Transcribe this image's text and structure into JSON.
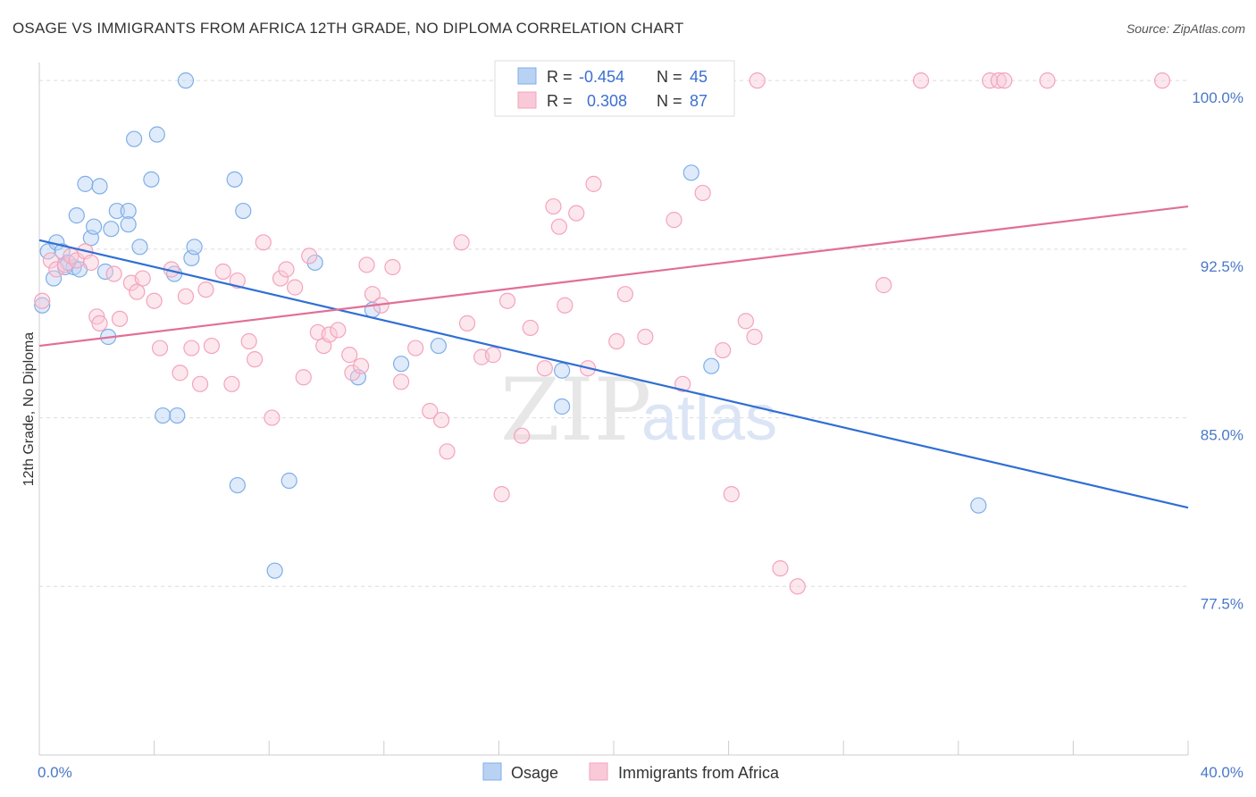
{
  "title": "OSAGE VS IMMIGRANTS FROM AFRICA 12TH GRADE, NO DIPLOMA CORRELATION CHART",
  "source": "Source: ZipAtlas.com",
  "watermark": {
    "zip": "ZIP",
    "atlas": "atlas"
  },
  "chart_data": {
    "type": "scatter",
    "ylabel": "12th Grade, No Diploma",
    "xlabel": "",
    "xlim": [
      0,
      40
    ],
    "ylim": [
      70,
      100.8
    ],
    "x_tick_labels": [
      "0.0%",
      "40.0%"
    ],
    "y_ticks": [
      77.5,
      85.0,
      92.5,
      100.0
    ],
    "y_tick_labels": [
      "77.5%",
      "85.0%",
      "92.5%",
      "100.0%"
    ],
    "legend": {
      "rows": [
        {
          "r_label": "R =",
          "r_value": "-0.454",
          "n_label": "N =",
          "n_value": "45"
        },
        {
          "r_label": "R =",
          "r_value": "0.308",
          "n_label": "N =",
          "n_value": "87"
        }
      ]
    },
    "series": [
      {
        "name": "Osage",
        "color": "#7eaee8",
        "line_color": "#2f6fd4",
        "trend": [
          [
            0,
            92.9
          ],
          [
            40,
            81.0
          ]
        ],
        "points": [
          [
            0.1,
            90.0
          ],
          [
            0.3,
            92.4
          ],
          [
            0.6,
            92.8
          ],
          [
            0.8,
            92.4
          ],
          [
            0.5,
            91.2
          ],
          [
            0.9,
            91.7
          ],
          [
            1.2,
            91.7
          ],
          [
            1.0,
            91.9
          ],
          [
            1.4,
            91.6
          ],
          [
            1.3,
            94.0
          ],
          [
            1.6,
            95.4
          ],
          [
            1.8,
            93.0
          ],
          [
            1.9,
            93.5
          ],
          [
            2.1,
            95.3
          ],
          [
            2.3,
            91.5
          ],
          [
            2.5,
            93.4
          ],
          [
            2.4,
            88.6
          ],
          [
            2.7,
            94.2
          ],
          [
            3.1,
            94.2
          ],
          [
            3.1,
            93.6
          ],
          [
            3.3,
            97.4
          ],
          [
            3.5,
            92.6
          ],
          [
            3.9,
            95.6
          ],
          [
            4.1,
            97.6
          ],
          [
            4.3,
            85.1
          ],
          [
            4.7,
            91.4
          ],
          [
            4.8,
            85.1
          ],
          [
            5.1,
            100.0
          ],
          [
            5.3,
            92.1
          ],
          [
            5.4,
            92.6
          ],
          [
            6.8,
            95.6
          ],
          [
            6.9,
            82.0
          ],
          [
            7.1,
            94.2
          ],
          [
            8.2,
            78.2
          ],
          [
            8.7,
            82.2
          ],
          [
            9.6,
            91.9
          ],
          [
            11.1,
            86.8
          ],
          [
            11.6,
            89.8
          ],
          [
            12.6,
            87.4
          ],
          [
            13.9,
            88.2
          ],
          [
            18.2,
            87.1
          ],
          [
            18.2,
            85.5
          ],
          [
            22.7,
            95.9
          ],
          [
            23.4,
            87.3
          ],
          [
            32.7,
            81.1
          ]
        ]
      },
      {
        "name": "Immigrants from Africa",
        "color": "#f4a3bf",
        "line_color": "#e06f98",
        "trend": [
          [
            0,
            88.2
          ],
          [
            40,
            94.4
          ]
        ],
        "points": [
          [
            0.1,
            90.2
          ],
          [
            0.4,
            92.0
          ],
          [
            0.6,
            91.6
          ],
          [
            0.9,
            91.8
          ],
          [
            1.1,
            92.2
          ],
          [
            1.3,
            92.0
          ],
          [
            1.6,
            92.4
          ],
          [
            1.8,
            91.9
          ],
          [
            2.0,
            89.5
          ],
          [
            2.1,
            89.2
          ],
          [
            2.6,
            91.4
          ],
          [
            2.8,
            89.4
          ],
          [
            3.2,
            91.0
          ],
          [
            3.4,
            90.6
          ],
          [
            3.6,
            91.2
          ],
          [
            4.0,
            90.2
          ],
          [
            4.2,
            88.1
          ],
          [
            4.6,
            91.6
          ],
          [
            4.9,
            87.0
          ],
          [
            5.1,
            90.4
          ],
          [
            5.3,
            88.1
          ],
          [
            5.6,
            86.5
          ],
          [
            5.8,
            90.7
          ],
          [
            6.0,
            88.2
          ],
          [
            6.4,
            91.5
          ],
          [
            6.7,
            86.5
          ],
          [
            6.9,
            91.1
          ],
          [
            7.3,
            88.4
          ],
          [
            7.5,
            87.6
          ],
          [
            7.8,
            92.8
          ],
          [
            8.1,
            85.0
          ],
          [
            8.4,
            91.2
          ],
          [
            8.6,
            91.6
          ],
          [
            8.9,
            90.8
          ],
          [
            9.2,
            86.8
          ],
          [
            9.4,
            92.2
          ],
          [
            9.7,
            88.8
          ],
          [
            9.9,
            88.2
          ],
          [
            10.1,
            88.7
          ],
          [
            10.4,
            88.9
          ],
          [
            10.8,
            87.8
          ],
          [
            10.9,
            87.0
          ],
          [
            11.2,
            87.3
          ],
          [
            11.4,
            91.8
          ],
          [
            11.6,
            90.5
          ],
          [
            11.9,
            90.0
          ],
          [
            12.3,
            91.7
          ],
          [
            12.6,
            86.6
          ],
          [
            13.1,
            88.1
          ],
          [
            13.6,
            85.3
          ],
          [
            14.0,
            84.9
          ],
          [
            14.2,
            83.5
          ],
          [
            14.7,
            92.8
          ],
          [
            14.9,
            89.2
          ],
          [
            15.4,
            87.7
          ],
          [
            15.8,
            87.8
          ],
          [
            16.1,
            81.6
          ],
          [
            16.3,
            90.2
          ],
          [
            16.8,
            84.2
          ],
          [
            17.1,
            89.0
          ],
          [
            17.6,
            87.2
          ],
          [
            17.9,
            94.4
          ],
          [
            18.1,
            93.5
          ],
          [
            18.3,
            90.0
          ],
          [
            18.7,
            94.1
          ],
          [
            19.1,
            87.2
          ],
          [
            19.3,
            95.4
          ],
          [
            20.1,
            88.4
          ],
          [
            20.4,
            90.5
          ],
          [
            21.1,
            88.6
          ],
          [
            22.1,
            93.8
          ],
          [
            22.4,
            86.5
          ],
          [
            23.1,
            95.0
          ],
          [
            23.8,
            88.0
          ],
          [
            24.1,
            81.6
          ],
          [
            24.6,
            89.3
          ],
          [
            24.9,
            88.6
          ],
          [
            25.0,
            100.0
          ],
          [
            25.8,
            78.3
          ],
          [
            26.4,
            77.5
          ],
          [
            29.4,
            90.9
          ],
          [
            30.7,
            100.0
          ],
          [
            33.1,
            100.0
          ],
          [
            33.4,
            100.0
          ],
          [
            33.6,
            100.0
          ],
          [
            35.1,
            100.0
          ],
          [
            39.1,
            100.0
          ]
        ]
      }
    ]
  },
  "bottom_legend": {
    "items": [
      {
        "label": "Osage",
        "color": "#b9d2f4",
        "stroke": "#7eaee8"
      },
      {
        "label": "Immigrants from Africa",
        "color": "#f9c9d8",
        "stroke": "#f4a3bf"
      }
    ]
  }
}
